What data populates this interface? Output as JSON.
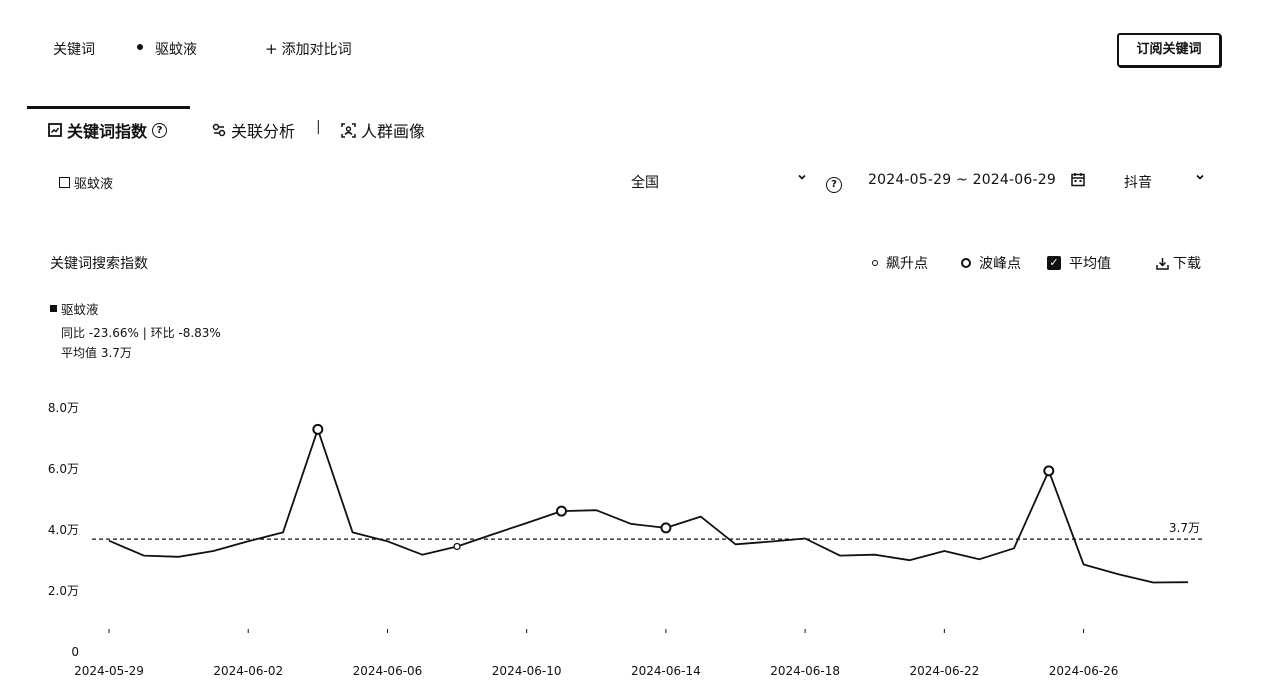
{
  "header": {
    "keyword_label": "关键词",
    "current_keyword": "驱蚊液",
    "add_compare": "添加对比词",
    "subscribe_button": "订阅关键词"
  },
  "tabs": [
    {
      "label": "关键词指数",
      "icon": "chart-icon",
      "active": true
    },
    {
      "label": "关联分析",
      "icon": "link-icon",
      "active": false
    },
    {
      "label": "人群画像",
      "icon": "person-scan-icon",
      "active": false
    }
  ],
  "tab_separator": "|",
  "filters": {
    "keyword": "驱蚊液",
    "region": "全国",
    "date_range": "2024-05-29 ~ 2024-06-29",
    "platform": "抖音"
  },
  "chart_header": {
    "title": "关键词搜索指数",
    "legend_surge": "飙升点",
    "legend_peak": "波峰点",
    "legend_average": "平均值",
    "download": "下载"
  },
  "series_info": {
    "name": "驱蚊液",
    "stats": "同比 -23.66% | 环比 -8.83%",
    "average": "平均值 3.7万"
  },
  "colors": {
    "line": "#111111",
    "text": "#111111"
  },
  "chart_data": {
    "type": "line",
    "x": [
      "2024-05-29",
      "2024-05-30",
      "2024-05-31",
      "2024-06-01",
      "2024-06-02",
      "2024-06-03",
      "2024-06-04",
      "2024-06-05",
      "2024-06-06",
      "2024-06-07",
      "2024-06-08",
      "2024-06-09",
      "2024-06-10",
      "2024-06-11",
      "2024-06-12",
      "2024-06-13",
      "2024-06-14",
      "2024-06-15",
      "2024-06-16",
      "2024-06-17",
      "2024-06-18",
      "2024-06-19",
      "2024-06-20",
      "2024-06-21",
      "2024-06-22",
      "2024-06-23",
      "2024-06-24",
      "2024-06-25",
      "2024-06-26",
      "2024-06-27",
      "2024-06-28",
      "2024-06-29"
    ],
    "series": [
      {
        "name": "驱蚊液",
        "values": [
          3.65,
          3.16,
          3.12,
          3.31,
          3.63,
          3.92,
          7.3,
          3.92,
          3.63,
          3.19,
          3.46,
          3.85,
          4.23,
          4.62,
          4.65,
          4.2,
          4.07,
          4.44,
          3.53,
          3.62,
          3.72,
          3.16,
          3.19,
          3.01,
          3.31,
          3.04,
          3.4,
          5.94,
          2.87,
          2.55,
          2.28,
          2.29
        ]
      }
    ],
    "surge_points": [
      "2024-06-08",
      "2024-06-11"
    ],
    "peak_points": [
      "2024-06-04",
      "2024-06-11",
      "2024-06-14",
      "2024-06-25"
    ],
    "average": 3.7,
    "average_label": "3.7万",
    "y_ticks": [
      {
        "value": 0,
        "label": "0"
      },
      {
        "value": 2,
        "label": "2.0万"
      },
      {
        "value": 4,
        "label": "4.0万"
      },
      {
        "value": 6,
        "label": "6.0万"
      },
      {
        "value": 8,
        "label": "8.0万"
      }
    ],
    "x_ticks": [
      "2024-05-29",
      "2024-06-02",
      "2024-06-06",
      "2024-06-10",
      "2024-06-14",
      "2024-06-18",
      "2024-06-22",
      "2024-06-26"
    ],
    "ylim": [
      0,
      8
    ],
    "unit": "万",
    "grid": false
  }
}
